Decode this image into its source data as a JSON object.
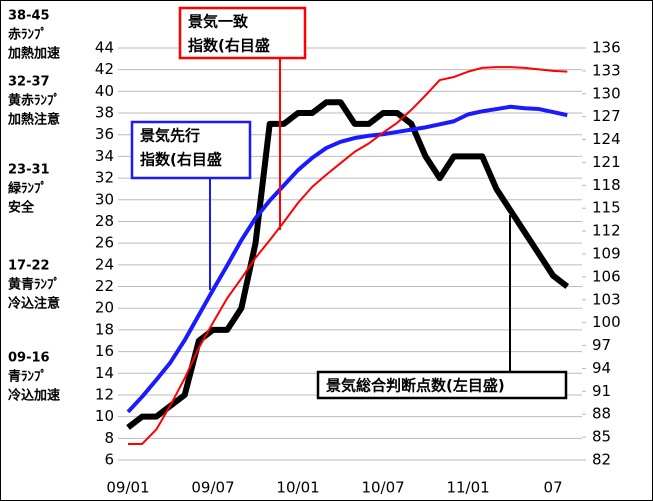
{
  "chart_data": {
    "type": "line",
    "categories": [
      "09/01",
      null,
      null,
      null,
      null,
      null,
      "09/07",
      null,
      null,
      null,
      null,
      null,
      "10/01",
      null,
      null,
      null,
      null,
      null,
      "10/07",
      null,
      null,
      null,
      null,
      null,
      "11/01",
      null,
      null,
      null,
      null,
      null,
      "07",
      null
    ],
    "series": [
      {
        "color": "#000000",
        "axis": "y",
        "values": [
          9,
          10,
          10,
          11,
          12,
          17,
          18,
          18,
          20,
          26,
          37,
          37,
          38,
          38,
          39,
          39,
          37,
          37,
          38,
          38,
          37,
          34,
          32,
          34,
          34,
          34,
          31,
          29,
          27,
          25,
          23,
          22
        ]
      },
      {
        "color": "#1a1aff",
        "axis": "y2",
        "values": [
          88.3,
          90.3,
          92.5,
          94.8,
          97.7,
          101,
          104.3,
          107.5,
          110.8,
          113.7,
          116,
          118,
          120,
          121.6,
          122.9,
          123.7,
          124.2,
          124.5,
          124.7,
          125,
          125.3,
          125.6,
          126,
          126.4,
          127.3,
          127.7,
          128,
          128.3,
          128.1,
          128,
          127.6,
          127.2
        ]
      },
      {
        "color": "#ff0000",
        "axis": "y2",
        "values": [
          84.1,
          84.1,
          86,
          89.2,
          92.7,
          96.7,
          100,
          103.2,
          105.8,
          108.5,
          110.8,
          113.2,
          115.7,
          117.8,
          119.4,
          120.9,
          122.4,
          123.5,
          124.9,
          126.2,
          127.9,
          129.8,
          131.8,
          132.2,
          132.9,
          133.4,
          133.5,
          133.5,
          133.4,
          133.2,
          133,
          132.9
        ]
      }
    ],
    "ylim": [
      6,
      44
    ],
    "yticks": [
      6,
      8,
      10,
      12,
      14,
      16,
      18,
      20,
      22,
      24,
      26,
      28,
      30,
      32,
      34,
      36,
      38,
      40,
      42,
      44
    ],
    "y2lim": [
      82,
      136
    ],
    "y2ticks": [
      82,
      85,
      88,
      91,
      94,
      97,
      100,
      103,
      106,
      109,
      112,
      115,
      118,
      121,
      124,
      127,
      130,
      133,
      136
    ],
    "grid": true,
    "annotations": [
      {
        "series": 2,
        "lines": [
          "景気一致",
          "指数(右目盛"
        ]
      },
      {
        "series": 1,
        "lines": [
          "景気先行",
          "指数(右目盛"
        ]
      },
      {
        "series": 0,
        "lines": [
          "景気総合判断点数(左目盛)"
        ]
      }
    ],
    "zones": [
      {
        "range": "38-45",
        "lines": [
          "赤ﾗﾝﾌﾟ",
          "加熱加速"
        ]
      },
      {
        "range": "32-37",
        "lines": [
          "黄赤ﾗﾝﾌﾟ",
          "加熱注意"
        ]
      },
      {
        "range": "23-31",
        "lines": [
          "緑ﾗﾝﾌﾟ",
          "安全"
        ]
      },
      {
        "range": "17-22",
        "lines": [
          "黄青ﾗﾝﾌﾟ",
          "冷込注意"
        ]
      },
      {
        "range": "09-16",
        "lines": [
          "青ﾗﾝﾌﾟ",
          "冷込加速"
        ]
      }
    ]
  }
}
